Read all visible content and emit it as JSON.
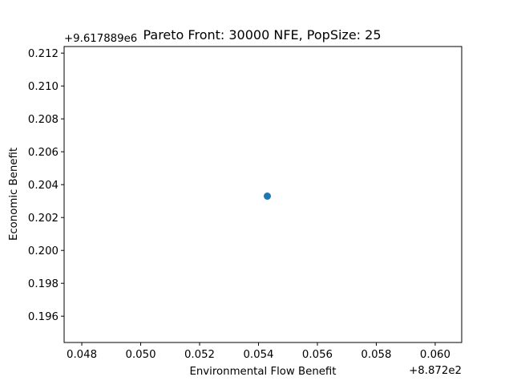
{
  "chart_data": {
    "type": "scatter",
    "title": "Pareto Front: 30000 NFE, PopSize: 25",
    "xlabel": "Environmental Flow Benefit",
    "ylabel": "Economic Benefit",
    "x_offset_text": "+8.872e2",
    "y_offset_text": "+9.617889e6",
    "x_offset": 887.2,
    "y_offset": 9617889,
    "xlim": [
      0.0474,
      0.0609
    ],
    "ylim": [
      0.1944,
      0.2124
    ],
    "x_ticks": [
      0.048,
      0.05,
      0.052,
      0.054,
      0.056,
      0.058,
      0.06
    ],
    "x_tick_labels": [
      "0.048",
      "0.050",
      "0.052",
      "0.054",
      "0.056",
      "0.058",
      "0.060"
    ],
    "y_ticks": [
      0.196,
      0.198,
      0.2,
      0.202,
      0.204,
      0.206,
      0.208,
      0.21,
      0.212
    ],
    "y_tick_labels": [
      "0.196",
      "0.198",
      "0.200",
      "0.202",
      "0.204",
      "0.206",
      "0.208",
      "0.210",
      "0.212"
    ],
    "points": [
      {
        "x": 0.0543,
        "y": 0.2033
      }
    ],
    "marker_color": "#1f77b4",
    "grid": false
  }
}
